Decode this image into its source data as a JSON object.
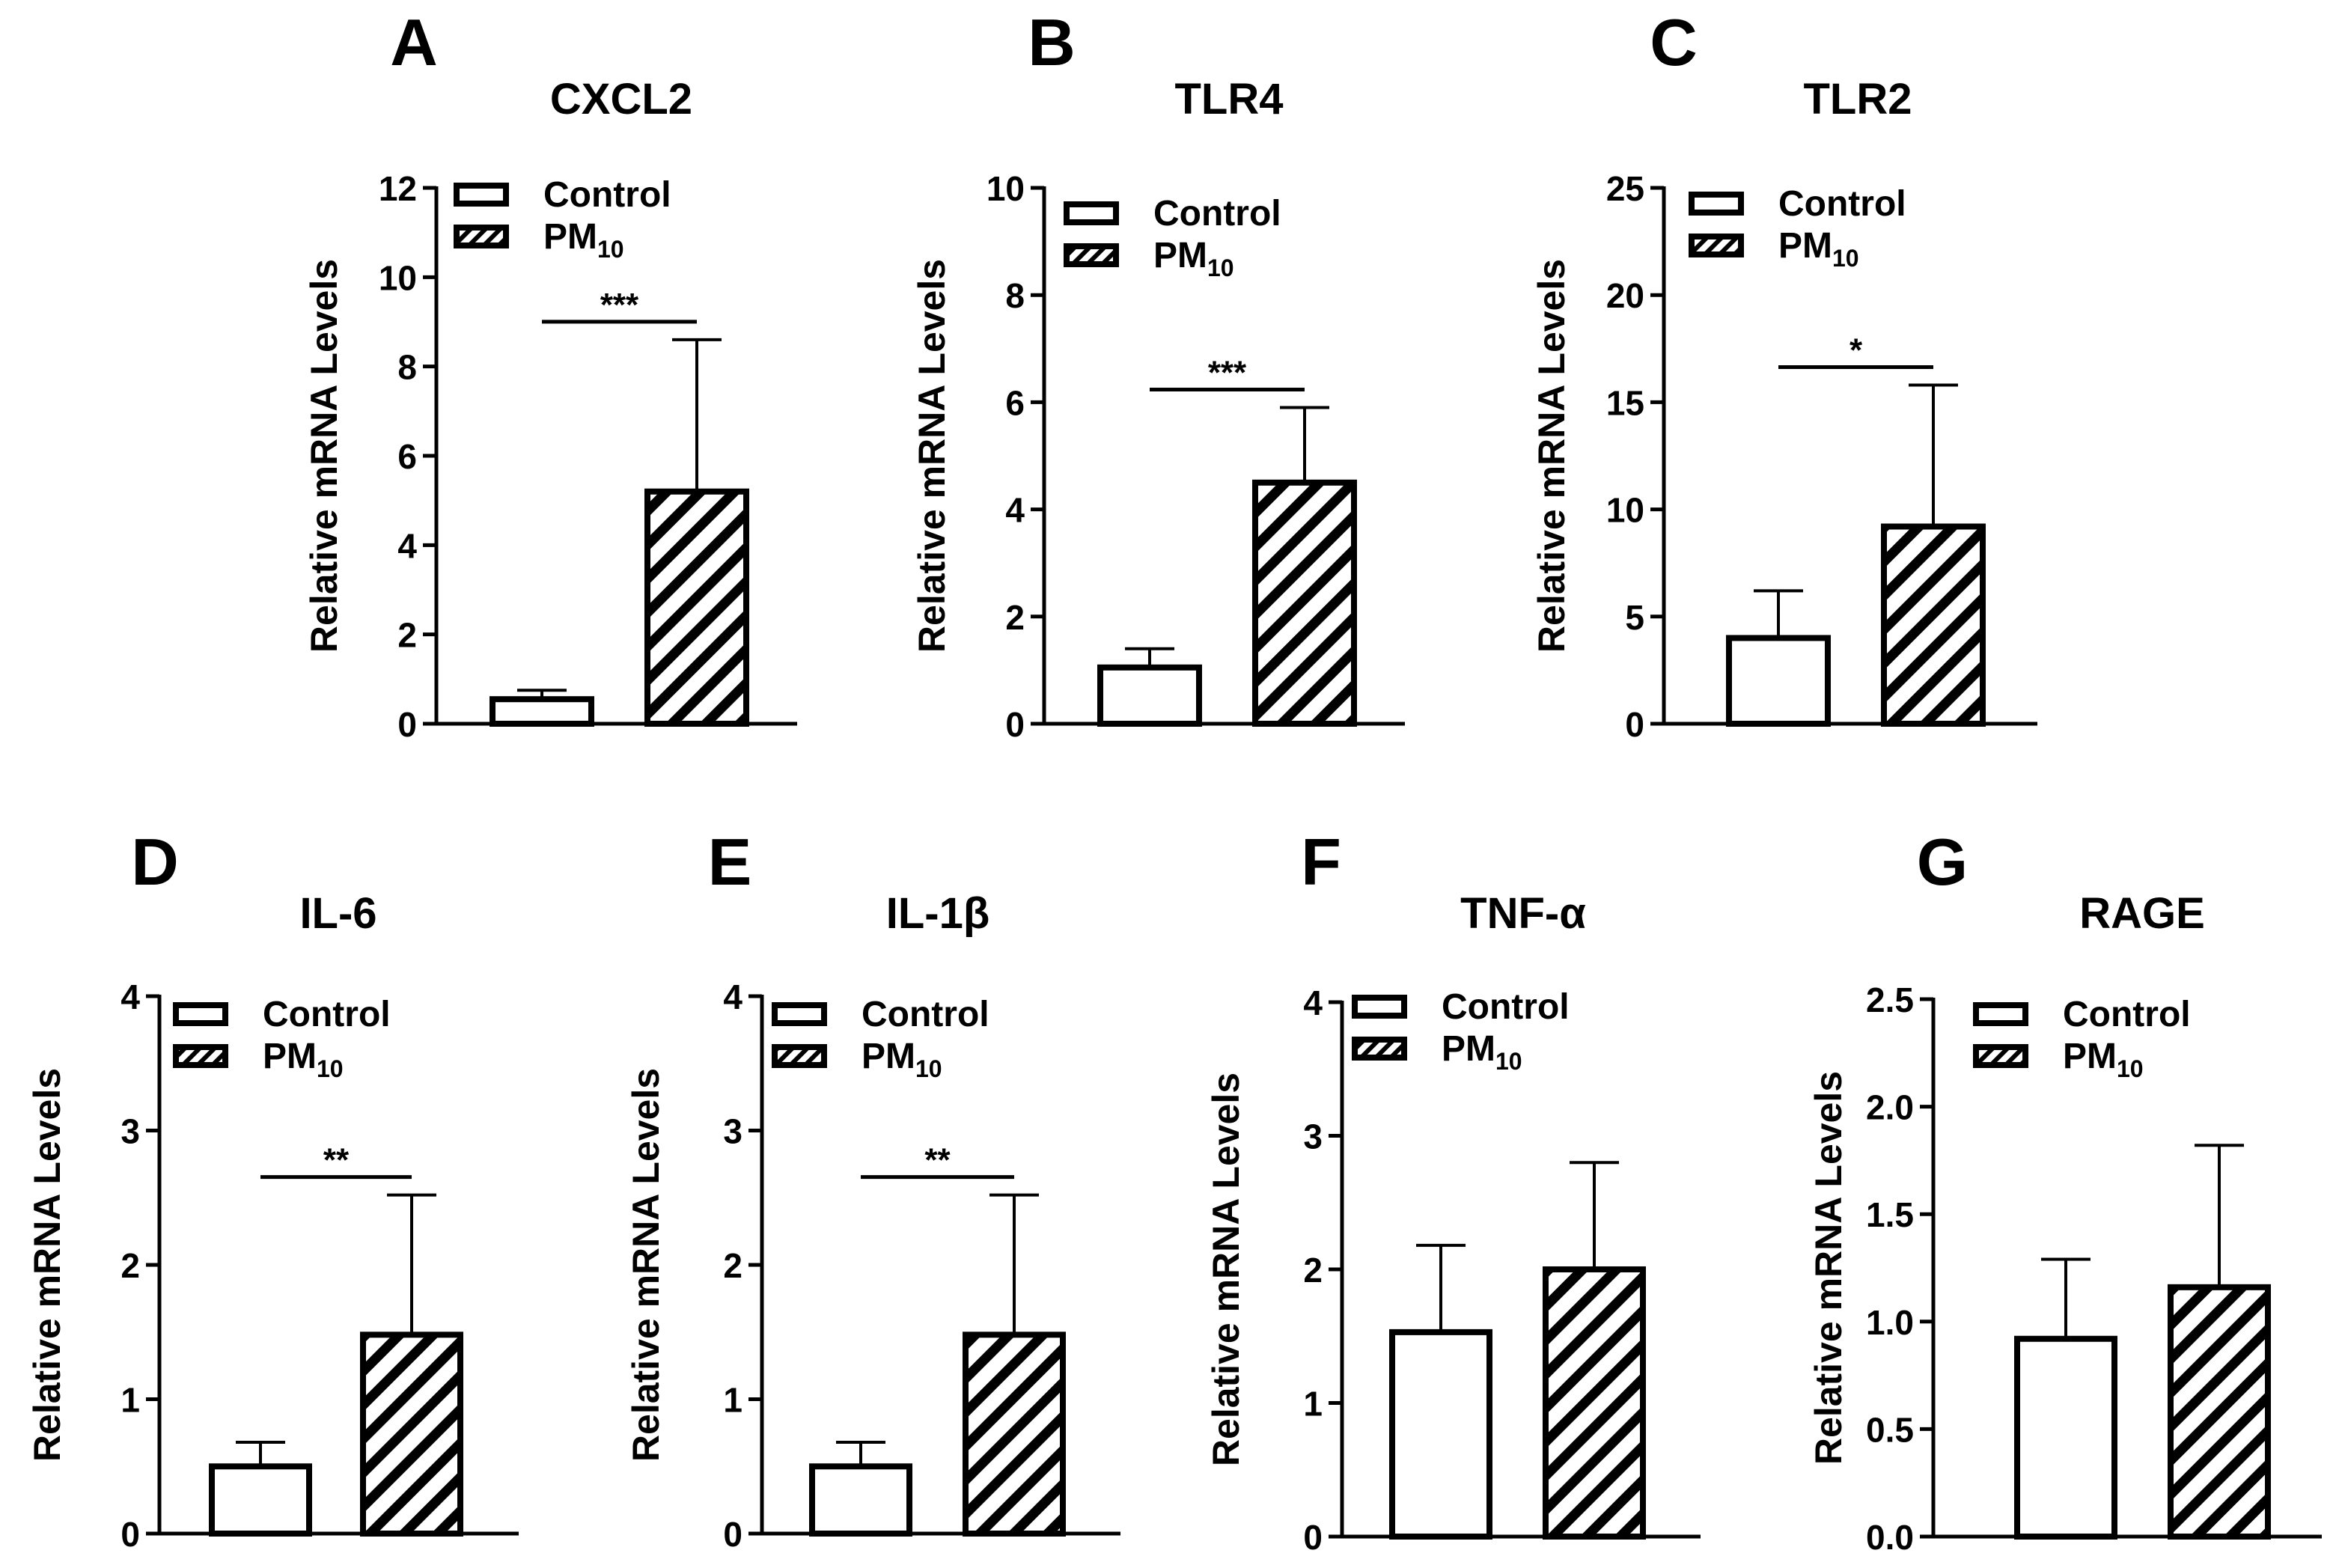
{
  "legend": {
    "control": "Control",
    "pm_base": "PM",
    "pm_sub": "10"
  },
  "colors": {
    "ink": "#000000",
    "background": "#ffffff"
  },
  "chart_data": [
    {
      "letter": "A",
      "title": "CXCL2",
      "type": "bar",
      "categories": [
        "Control",
        "PM10"
      ],
      "ylabel": "Relative mRNA Levels",
      "ylim": [
        0,
        12
      ],
      "yticks": [
        "0",
        "2",
        "4",
        "6",
        "8",
        "10",
        "12"
      ],
      "values": [
        0.55,
        5.2
      ],
      "errors": [
        0.2,
        3.4
      ],
      "significance": "***",
      "legend_position": "top-left"
    },
    {
      "letter": "B",
      "title": "TLR4",
      "type": "bar",
      "categories": [
        "Control",
        "PM10"
      ],
      "ylabel": "Relative mRNA Levels",
      "ylim": [
        0,
        10
      ],
      "yticks": [
        "0",
        "2",
        "4",
        "6",
        "8",
        "10"
      ],
      "values": [
        1.05,
        4.5
      ],
      "errors": [
        0.35,
        1.4
      ],
      "significance": "***",
      "legend_position": "top-left"
    },
    {
      "letter": "C",
      "title": "TLR2",
      "type": "bar",
      "categories": [
        "Control",
        "PM10"
      ],
      "ylabel": "Relative mRNA Levels",
      "ylim": [
        0,
        25
      ],
      "yticks": [
        "0",
        "5",
        "10",
        "15",
        "20",
        "25"
      ],
      "values": [
        4.0,
        9.2
      ],
      "errors": [
        2.2,
        6.6
      ],
      "significance": "*",
      "legend_position": "top-left"
    },
    {
      "letter": "D",
      "title": "IL-6",
      "type": "bar",
      "categories": [
        "Control",
        "PM10"
      ],
      "ylabel": "Relative mRNA Levels",
      "ylim": [
        0,
        4
      ],
      "yticks": [
        "0",
        "1",
        "2",
        "3",
        "4"
      ],
      "values": [
        0.5,
        1.48
      ],
      "errors": [
        0.18,
        1.04
      ],
      "significance": "**",
      "legend_position": "top-left"
    },
    {
      "letter": "E",
      "title": "IL-1β",
      "type": "bar",
      "categories": [
        "Control",
        "PM10"
      ],
      "ylabel": "Relative mRNA Levels",
      "ylim": [
        0,
        4
      ],
      "yticks": [
        "0",
        "1",
        "2",
        "3",
        "4"
      ],
      "values": [
        0.5,
        1.48
      ],
      "errors": [
        0.18,
        1.04
      ],
      "significance": "**",
      "legend_position": "top-left"
    },
    {
      "letter": "F",
      "title": "TNF-α",
      "type": "bar",
      "categories": [
        "Control",
        "PM10"
      ],
      "ylabel": "Relative mRNA Levels",
      "ylim": [
        0,
        4
      ],
      "yticks": [
        "0",
        "1",
        "2",
        "3",
        "4"
      ],
      "values": [
        1.53,
        2.0
      ],
      "errors": [
        0.65,
        0.8
      ],
      "significance": "",
      "legend_position": "top-left"
    },
    {
      "letter": "G",
      "title": "RAGE",
      "type": "bar",
      "categories": [
        "Control",
        "PM10"
      ],
      "ylabel": "Relative mRNA Levels",
      "ylim": [
        0,
        2.5
      ],
      "yticks": [
        "0.0",
        "0.5",
        "1.0",
        "1.5",
        "2.0",
        "2.5"
      ],
      "values": [
        0.92,
        1.16
      ],
      "errors": [
        0.37,
        0.66
      ],
      "significance": "",
      "legend_position": "top-left"
    }
  ]
}
